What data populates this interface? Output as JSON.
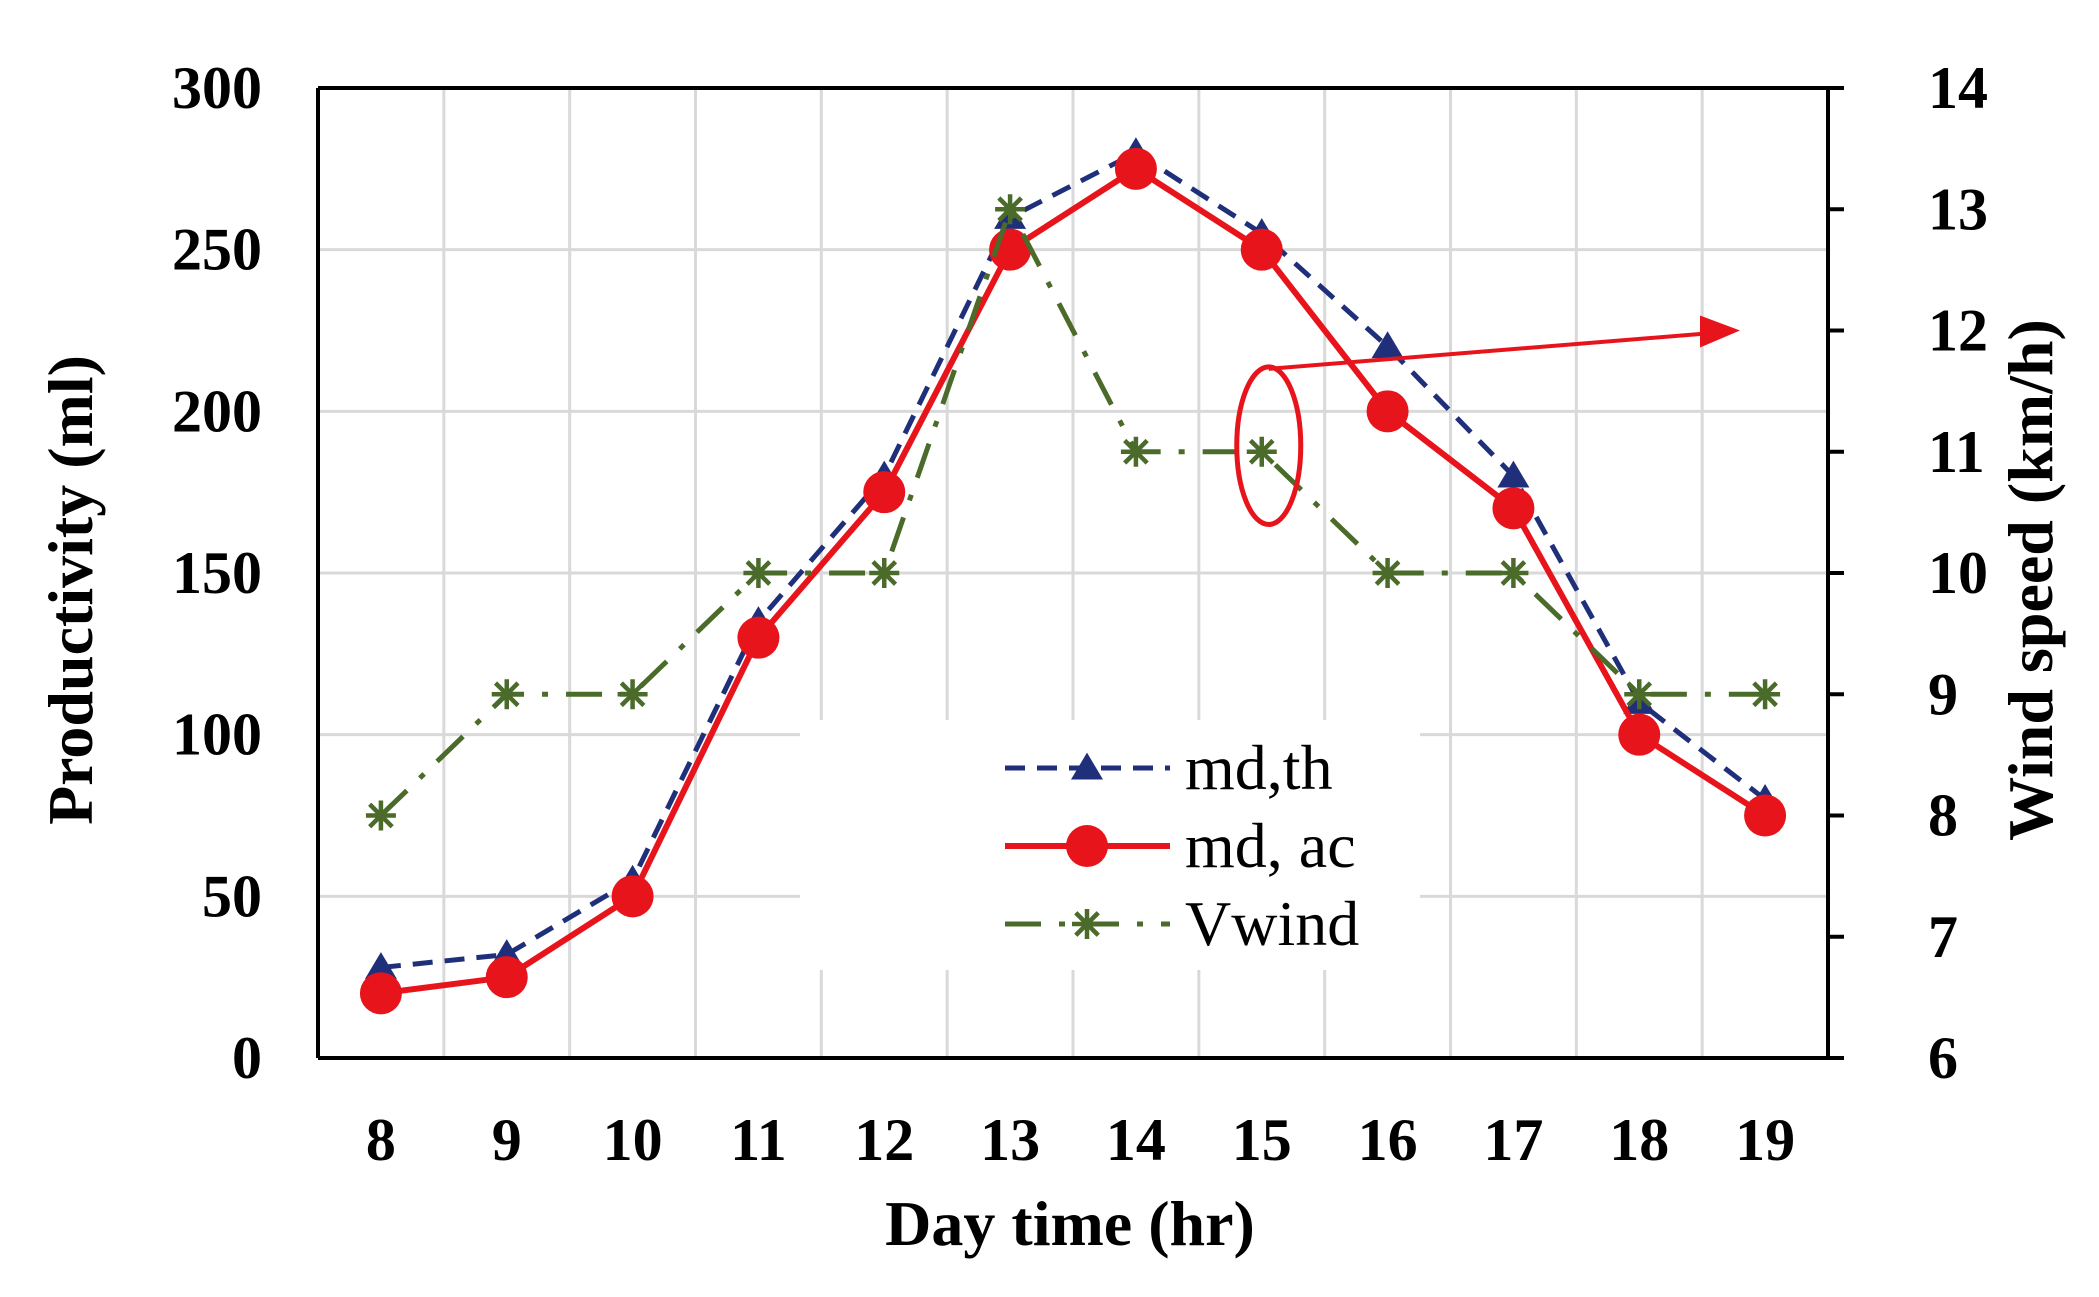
{
  "chart_data": {
    "type": "line",
    "title": "",
    "x": [
      8,
      9,
      10,
      11,
      12,
      13,
      14,
      15,
      16,
      17,
      18,
      19
    ],
    "xlabel": "Day time (hr)",
    "ylabel": "Productivity (ml)",
    "y2label": "Wind speed (km/h)",
    "xlim": [
      7.5,
      19.5
    ],
    "ylim": [
      0,
      300
    ],
    "y2lim": [
      6,
      14
    ],
    "x_ticks": [
      "8",
      "9",
      "10",
      "11",
      "12",
      "13",
      "14",
      "15",
      "16",
      "17",
      "18",
      "19"
    ],
    "y_ticks": [
      "0",
      "50",
      "100",
      "150",
      "200",
      "250",
      "300"
    ],
    "y2_ticks": [
      "6",
      "7",
      "8",
      "9",
      "10",
      "11",
      "12",
      "13",
      "14"
    ],
    "grid": true,
    "legend_position": "center",
    "series": [
      {
        "name": "md,th",
        "axis": "left",
        "color": "#1f2f7a",
        "line_style": "dashed",
        "marker": "triangle",
        "values": [
          28,
          32,
          55,
          135,
          180,
          260,
          280,
          255,
          220,
          180,
          110,
          80
        ]
      },
      {
        "name": "md, ac",
        "axis": "left",
        "color": "#e8141c",
        "line_style": "solid",
        "marker": "circle",
        "values": [
          20,
          25,
          50,
          130,
          175,
          250,
          275,
          250,
          200,
          170,
          100,
          75
        ]
      },
      {
        "name": "Vwind",
        "axis": "right",
        "color": "#4a6b2a",
        "line_style": "dashdot",
        "marker": "asterisk",
        "values": [
          8,
          9,
          9,
          10,
          10,
          13,
          11,
          11,
          10,
          10,
          9,
          9
        ]
      }
    ],
    "annotation": {
      "type": "ellipse-with-arrow",
      "color": "#e8141c",
      "x": 15,
      "y_from": 10.4,
      "y_to": 11.7,
      "arrow_to_axis": "right",
      "arrow_to_value": 12
    }
  }
}
